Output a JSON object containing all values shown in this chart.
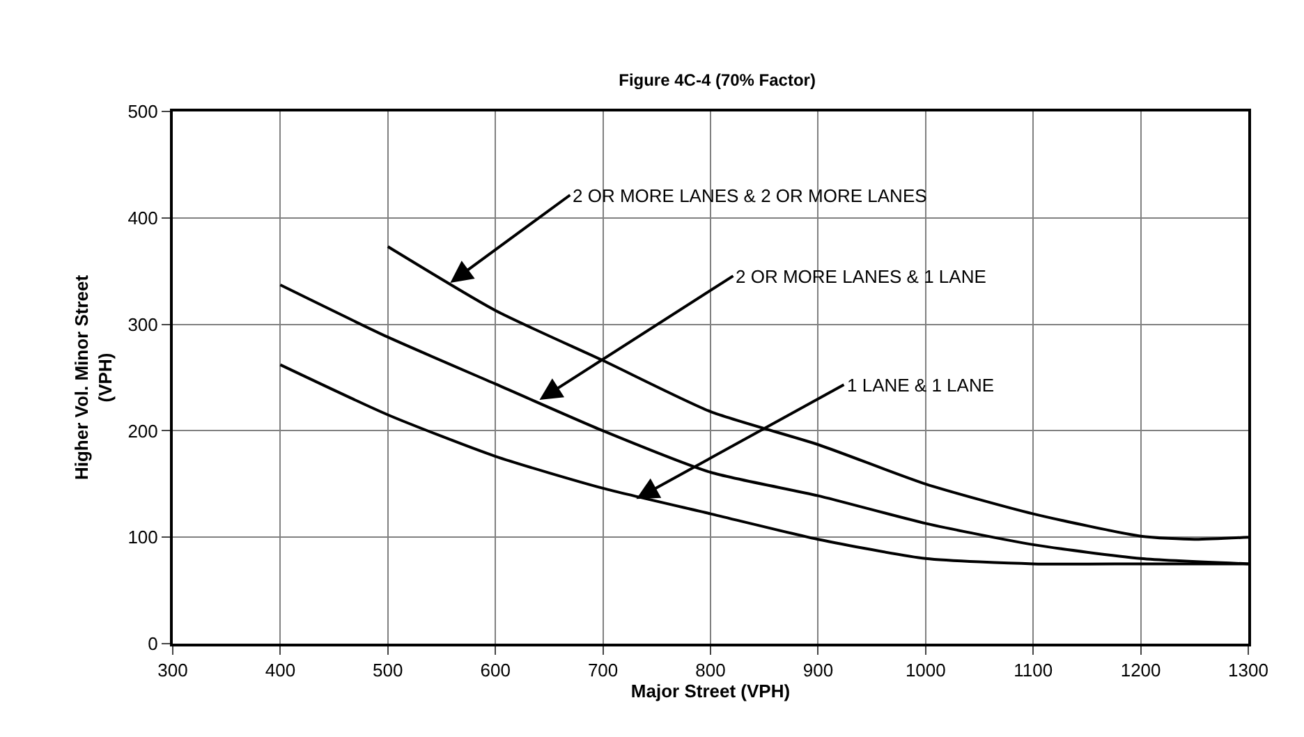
{
  "chart_data": {
    "type": "line",
    "title": "Figure 4C-4 (70% Factor)",
    "xlabel": "Major Street (VPH)",
    "ylabel": "Higher Vol. Minor Street\n(VPH)",
    "series": [
      {
        "x": [
          500,
          600,
          700,
          800,
          900,
          1000,
          1100,
          1200,
          1250,
          1300
        ],
        "values": [
          373,
          313,
          266,
          218,
          187,
          150,
          122,
          101,
          98,
          100
        ],
        "color": "#000000"
      },
      {
        "x": [
          400,
          500,
          600,
          700,
          800,
          900,
          1000,
          1100,
          1200,
          1300
        ],
        "values": [
          337,
          288,
          244,
          200,
          161,
          139,
          113,
          93,
          80,
          75
        ],
        "color": "#000000"
      },
      {
        "x": [
          400,
          500,
          600,
          700,
          800,
          900,
          1000,
          1100,
          1200,
          1300
        ],
        "values": [
          262,
          215,
          176,
          146,
          122,
          98,
          80,
          75,
          75,
          75
        ],
        "color": "#000000"
      }
    ],
    "annotations": [
      {
        "text": "2 OR MORE LANES & 2 OR MORE LANES",
        "x": 558,
        "y": 339
      },
      {
        "text": "2 OR MORE LANES & 1 LANE",
        "x": 641,
        "y": 229
      },
      {
        "text": "1 LANE & 1 LANE",
        "x": 731,
        "y": 136
      }
    ],
    "xlim": [
      300,
      1300
    ],
    "xticks": [
      300,
      400,
      500,
      600,
      700,
      800,
      900,
      1000,
      1100,
      1200,
      1300
    ],
    "ylim": [
      0,
      500
    ],
    "yticks": [
      0,
      100,
      200,
      300,
      400,
      500
    ],
    "grid": true,
    "marker": "none",
    "line_style": "solid"
  }
}
